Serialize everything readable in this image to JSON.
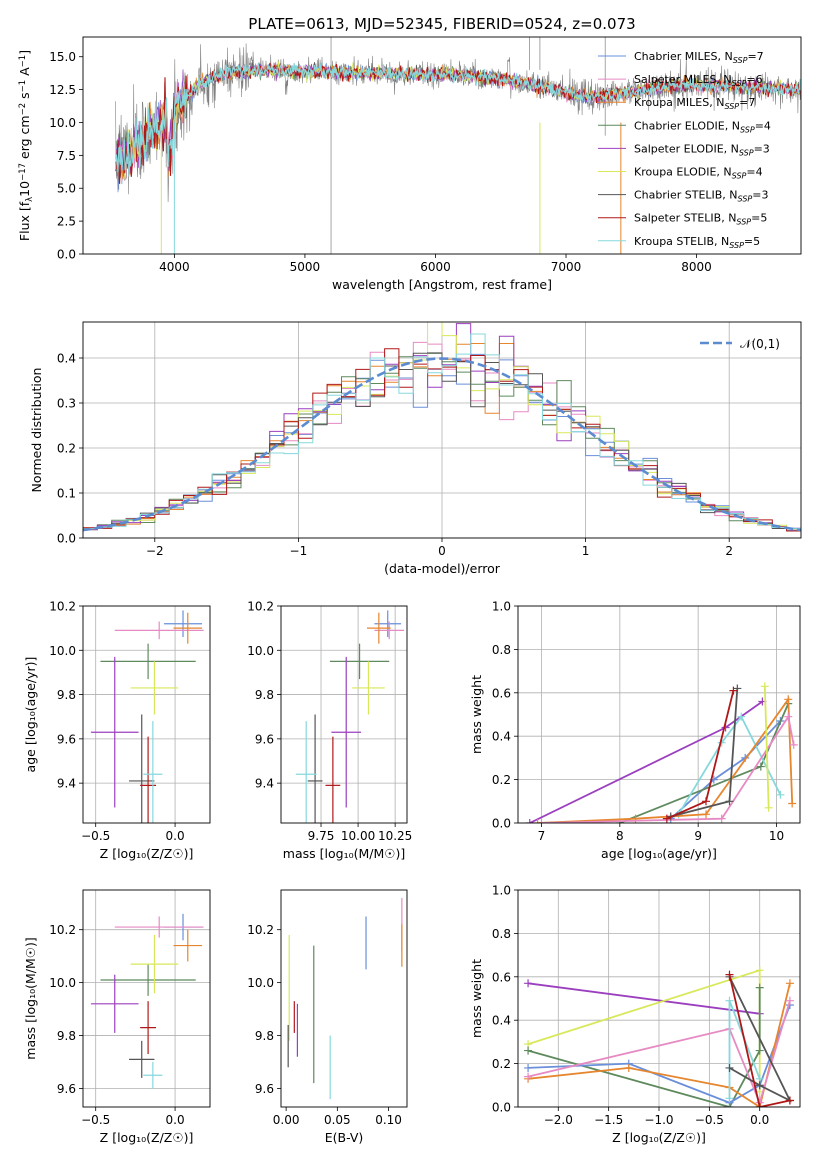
{
  "chart_data": [
    {
      "id": "spectrum",
      "type": "line",
      "title": "PLATE=0613, MJD=52345, FIBERID=0524, z=0.073",
      "xlabel": "wavelength [Angstrom, rest frame]",
      "ylabel_parts": [
        "Flux [f",
        "λ",
        "10",
        "−17",
        " erg cm",
        "−2",
        " s",
        "−1",
        " A",
        "−1",
        "]"
      ],
      "xlim": [
        3300,
        8800
      ],
      "ylim": [
        0,
        16.5
      ],
      "xticks": [
        4000,
        5000,
        6000,
        7000,
        8000
      ],
      "yticks": [
        0.0,
        2.5,
        5.0,
        7.5,
        10.0,
        12.5,
        15.0
      ],
      "legend_position": "top-right",
      "legend": [
        {
          "base": "Chabrier MILES, N",
          "sub": "SSP",
          "tail": "=7",
          "color": "#6a8fdb"
        },
        {
          "base": "Salpeter MILES, N",
          "sub": "SSP",
          "tail": "=6",
          "color": "#e78ac3"
        },
        {
          "base": "Kroupa MILES, N",
          "sub": "SSP",
          "tail": "=7",
          "color": "#e6862e"
        },
        {
          "base": "Chabrier ELODIE, N",
          "sub": "SSP",
          "tail": "=4",
          "color": "#5e8a5e"
        },
        {
          "base": "Salpeter ELODIE, N",
          "sub": "SSP",
          "tail": "=3",
          "color": "#9b3fbf"
        },
        {
          "base": "Kroupa ELODIE, N",
          "sub": "SSP",
          "tail": "=4",
          "color": "#d8e85a"
        },
        {
          "base": "Chabrier STELIB, N",
          "sub": "SSP",
          "tail": "=3",
          "color": "#555555"
        },
        {
          "base": "Salpeter STELIB, N",
          "sub": "SSP",
          "tail": "=5",
          "color": "#b01818"
        },
        {
          "base": "Kroupa STELIB, N",
          "sub": "SSP",
          "tail": "=5",
          "color": "#86d8dc"
        }
      ],
      "continuum_knots": {
        "x": [
          3550,
          3650,
          3750,
          3850,
          3950,
          4050,
          4200,
          4400,
          4700,
          5000,
          5400,
          5800,
          6200,
          6600,
          7000,
          7200,
          7400,
          7800,
          8200,
          8600,
          8800
        ],
        "y": [
          7.2,
          7.8,
          8.5,
          9.5,
          10.3,
          11.5,
          13.0,
          13.8,
          14.0,
          13.9,
          13.8,
          13.7,
          13.6,
          13.2,
          12.3,
          11.9,
          12.2,
          12.8,
          12.8,
          12.6,
          12.5
        ]
      },
      "data_color": "#808080"
    },
    {
      "id": "residuals",
      "type": "histogram",
      "xlabel": "(data-model)/error",
      "ylabel": "Normed distribution",
      "xlim": [
        -2.5,
        2.5
      ],
      "ylim": [
        0,
        0.48
      ],
      "xticks": [
        -2,
        -1,
        0,
        1,
        2
      ],
      "yticks": [
        0.0,
        0.1,
        0.2,
        0.3,
        0.4
      ],
      "grid": true,
      "bin_width": 0.1,
      "reference_curve": {
        "name": "𝒩(0,1)",
        "color": "#5b8bd0",
        "style": "dashed"
      },
      "legend_position": "top-right"
    },
    {
      "id": "age_vs_Z",
      "type": "errorbar",
      "xlabel": "Z [log₁₀(Z/Z☉)]",
      "ylabel": "age  [log₁₀(age/yr)]",
      "xlim": [
        -0.58,
        0.22
      ],
      "ylim": [
        9.22,
        10.2
      ],
      "xticks": [
        -0.5,
        0.0
      ],
      "yticks": [
        9.4,
        9.6,
        9.8,
        10.0,
        10.2
      ],
      "grid": true,
      "points": [
        {
          "x": 0.05,
          "y": 10.12,
          "xerr": 0.12,
          "yerr": 0.06,
          "color": "#6a8fdb"
        },
        {
          "x": -0.1,
          "y": 10.09,
          "xerr": 0.28,
          "yerr": 0.04,
          "color": "#e78ac3"
        },
        {
          "x": 0.08,
          "y": 10.1,
          "xerr": 0.09,
          "yerr": 0.07,
          "color": "#e6862e"
        },
        {
          "x": -0.17,
          "y": 9.95,
          "xerr": 0.3,
          "yerr": 0.08,
          "color": "#5e8a5e"
        },
        {
          "x": -0.38,
          "y": 9.63,
          "xerr": 0.15,
          "yerr": 0.34,
          "color": "#9b3fbf"
        },
        {
          "x": -0.13,
          "y": 9.83,
          "xerr": 0.15,
          "yerr": 0.12,
          "color": "#d8e85a"
        },
        {
          "x": -0.21,
          "y": 9.41,
          "xerr": 0.08,
          "yerr": 0.3,
          "color": "#555555"
        },
        {
          "x": -0.17,
          "y": 9.39,
          "xerr": 0.05,
          "yerr": 0.22,
          "color": "#b01818"
        },
        {
          "x": -0.14,
          "y": 9.44,
          "xerr": 0.06,
          "yerr": 0.24,
          "color": "#86d8dc"
        }
      ]
    },
    {
      "id": "age_vs_mass",
      "type": "errorbar",
      "xlabel": "mass [log₁₀(M/M☉)]",
      "ylabel": "",
      "xlim": [
        9.48,
        10.33
      ],
      "ylim": [
        9.22,
        10.2
      ],
      "xticks": [
        9.75,
        10.0,
        10.25
      ],
      "yticks": [
        9.4,
        9.6,
        9.8,
        10.0,
        10.2
      ],
      "grid": true,
      "points": [
        {
          "x": 10.2,
          "y": 10.12,
          "xerr": 0.09,
          "yerr": 0.06,
          "color": "#6a8fdb"
        },
        {
          "x": 10.21,
          "y": 10.09,
          "xerr": 0.1,
          "yerr": 0.04,
          "color": "#e78ac3"
        },
        {
          "x": 10.14,
          "y": 10.1,
          "xerr": 0.08,
          "yerr": 0.07,
          "color": "#e6862e"
        },
        {
          "x": 10.01,
          "y": 9.95,
          "xerr": 0.2,
          "yerr": 0.08,
          "color": "#5e8a5e"
        },
        {
          "x": 9.92,
          "y": 9.63,
          "xerr": 0.1,
          "yerr": 0.34,
          "color": "#9b3fbf"
        },
        {
          "x": 10.07,
          "y": 9.83,
          "xerr": 0.11,
          "yerr": 0.12,
          "color": "#d8e85a"
        },
        {
          "x": 9.71,
          "y": 9.41,
          "xerr": 0.05,
          "yerr": 0.3,
          "color": "#555555"
        },
        {
          "x": 9.83,
          "y": 9.39,
          "xerr": 0.05,
          "yerr": 0.22,
          "color": "#b01818"
        },
        {
          "x": 9.65,
          "y": 9.44,
          "xerr": 0.07,
          "yerr": 0.24,
          "color": "#86d8dc"
        }
      ]
    },
    {
      "id": "weight_vs_age",
      "type": "line",
      "xlabel": "age  [log₁₀(age/yr)]",
      "ylabel": "mass weight",
      "xlim": [
        6.7,
        10.3
      ],
      "ylim": [
        0,
        1.0
      ],
      "xticks": [
        7,
        8,
        9,
        10
      ],
      "yticks": [
        0.0,
        0.2,
        0.4,
        0.6,
        0.8,
        1.0
      ],
      "grid": true,
      "series": [
        {
          "color": "#9b3fbf",
          "x": [
            6.85,
            9.35,
            9.82
          ],
          "y": [
            0.0,
            0.44,
            0.56
          ]
        },
        {
          "color": "#6a8fdb",
          "x": [
            8.65,
            9.2,
            9.6,
            10.05
          ],
          "y": [
            0.02,
            0.2,
            0.3,
            0.47
          ]
        },
        {
          "color": "#5e8a5e",
          "x": [
            8.0,
            9.8,
            10.15
          ],
          "y": [
            0.0,
            0.26,
            0.55
          ]
        },
        {
          "color": "#86d8dc",
          "x": [
            8.75,
            9.3,
            9.55,
            10.05
          ],
          "y": [
            0.04,
            0.37,
            0.49,
            0.13
          ]
        },
        {
          "color": "#e6862e",
          "x": [
            6.95,
            8.2,
            9.1,
            10.15,
            10.2
          ],
          "y": [
            0.0,
            0.02,
            0.04,
            0.57,
            0.09
          ]
        },
        {
          "color": "#e78ac3",
          "x": [
            7.0,
            9.3,
            10.15,
            10.22
          ],
          "y": [
            0.0,
            0.02,
            0.49,
            0.36
          ]
        },
        {
          "color": "#d8e85a",
          "x": [
            9.85,
            9.9
          ],
          "y": [
            0.63,
            0.07
          ]
        },
        {
          "color": "#555555",
          "x": [
            8.65,
            9.4,
            9.5
          ],
          "y": [
            0.03,
            0.1,
            0.62
          ]
        },
        {
          "color": "#b01818",
          "x": [
            8.6,
            9.1,
            9.45
          ],
          "y": [
            0.02,
            0.1,
            0.61
          ]
        }
      ]
    },
    {
      "id": "mass_vs_Z",
      "type": "errorbar",
      "xlabel": "Z [log₁₀(Z/Z☉)]",
      "ylabel": "mass [log₁₀(M/M☉)]",
      "xlim": [
        -0.58,
        0.22
      ],
      "ylim": [
        9.53,
        10.35
      ],
      "xticks": [
        -0.5,
        0.0
      ],
      "yticks": [
        9.6,
        9.8,
        10.0,
        10.2
      ],
      "grid": true,
      "points": [
        {
          "x": 0.05,
          "y": 10.21,
          "xerr": 0.12,
          "yerr": 0.05,
          "color": "#6a8fdb"
        },
        {
          "x": -0.1,
          "y": 10.21,
          "xerr": 0.28,
          "yerr": 0.04,
          "color": "#e78ac3"
        },
        {
          "x": 0.08,
          "y": 10.14,
          "xerr": 0.09,
          "yerr": 0.06,
          "color": "#e6862e"
        },
        {
          "x": -0.17,
          "y": 10.01,
          "xerr": 0.3,
          "yerr": 0.06,
          "color": "#5e8a5e"
        },
        {
          "x": -0.38,
          "y": 9.92,
          "xerr": 0.15,
          "yerr": 0.11,
          "color": "#9b3fbf"
        },
        {
          "x": -0.13,
          "y": 10.07,
          "xerr": 0.15,
          "yerr": 0.11,
          "color": "#d8e85a"
        },
        {
          "x": -0.21,
          "y": 9.71,
          "xerr": 0.08,
          "yerr": 0.07,
          "color": "#555555"
        },
        {
          "x": -0.17,
          "y": 9.83,
          "xerr": 0.05,
          "yerr": 0.1,
          "color": "#b01818"
        },
        {
          "x": -0.14,
          "y": 9.65,
          "xerr": 0.06,
          "yerr": 0.05,
          "color": "#86d8dc"
        }
      ]
    },
    {
      "id": "mass_vs_ebv",
      "type": "errorbar",
      "xlabel": "E(B-V)",
      "ylabel": "",
      "xlim": [
        -0.005,
        0.118
      ],
      "ylim": [
        9.53,
        10.35
      ],
      "xticks": [
        0.0,
        0.05,
        0.1
      ],
      "yticks": [
        9.6,
        9.8,
        10.0,
        10.2
      ],
      "grid": false,
      "points": [
        {
          "x": 0.078,
          "y": 10.15,
          "xerr": 0,
          "yerr": 0.1,
          "color": "#6a8fdb"
        },
        {
          "x": 0.113,
          "y": 10.22,
          "xerr": 0,
          "yerr": 0.1,
          "color": "#e78ac3"
        },
        {
          "x": 0.113,
          "y": 10.14,
          "xerr": 0,
          "yerr": 0.08,
          "color": "#e6862e"
        },
        {
          "x": 0.027,
          "y": 9.88,
          "xerr": 0,
          "yerr": 0.26,
          "color": "#5e8a5e"
        },
        {
          "x": 0.011,
          "y": 9.82,
          "xerr": 0,
          "yerr": 0.1,
          "color": "#9b3fbf"
        },
        {
          "x": 0.003,
          "y": 9.98,
          "xerr": 0,
          "yerr": 0.2,
          "color": "#d8e85a"
        },
        {
          "x": 0.002,
          "y": 9.76,
          "xerr": 0,
          "yerr": 0.08,
          "color": "#555555"
        },
        {
          "x": 0.008,
          "y": 9.87,
          "xerr": 0,
          "yerr": 0.06,
          "color": "#b01818"
        },
        {
          "x": 0.043,
          "y": 9.68,
          "xerr": 0,
          "yerr": 0.12,
          "color": "#86d8dc"
        }
      ]
    },
    {
      "id": "weight_vs_Z",
      "type": "line",
      "xlabel": "Z [log₁₀(Z/Z☉)]",
      "ylabel": "mass weight",
      "xlim": [
        -2.4,
        0.4
      ],
      "ylim": [
        0,
        1.0
      ],
      "xticks": [
        -2.0,
        -1.5,
        -1.0,
        -0.5,
        0.0
      ],
      "yticks": [
        0.0,
        0.2,
        0.4,
        0.6,
        0.8,
        1.0
      ],
      "grid": true,
      "series": [
        {
          "color": "#9b3fbf",
          "x": [
            -2.3,
            0.0
          ],
          "y": [
            0.57,
            0.43
          ]
        },
        {
          "color": "#d8e85a",
          "x": [
            -2.3,
            0.0,
            0.0
          ],
          "y": [
            0.29,
            0.63,
            0.07
          ]
        },
        {
          "color": "#5e8a5e",
          "x": [
            -2.3,
            -0.3,
            0.0,
            0.0
          ],
          "y": [
            0.26,
            0.0,
            0.26,
            0.55
          ]
        },
        {
          "color": "#6a8fdb",
          "x": [
            -2.3,
            -1.3,
            -0.3,
            0.0,
            0.3
          ],
          "y": [
            0.18,
            0.2,
            0.02,
            0.1,
            0.47
          ]
        },
        {
          "color": "#e6862e",
          "x": [
            -2.3,
            -1.3,
            -0.3,
            0.0,
            0.3
          ],
          "y": [
            0.13,
            0.18,
            0.09,
            0.0,
            0.57
          ]
        },
        {
          "color": "#e78ac3",
          "x": [
            -2.3,
            -0.3,
            0.0,
            0.3
          ],
          "y": [
            0.14,
            0.36,
            0.02,
            0.49
          ]
        },
        {
          "color": "#86d8dc",
          "x": [
            -0.3,
            -0.3,
            0.0
          ],
          "y": [
            0.04,
            0.49,
            0.13
          ]
        },
        {
          "color": "#555555",
          "x": [
            -0.3,
            0.3,
            0.0,
            -0.3
          ],
          "y": [
            0.6,
            0.03,
            0.1,
            0.18
          ]
        },
        {
          "color": "#b01818",
          "x": [
            -0.3,
            0.0,
            0.3
          ],
          "y": [
            0.61,
            0.0,
            0.03
          ]
        }
      ]
    }
  ]
}
